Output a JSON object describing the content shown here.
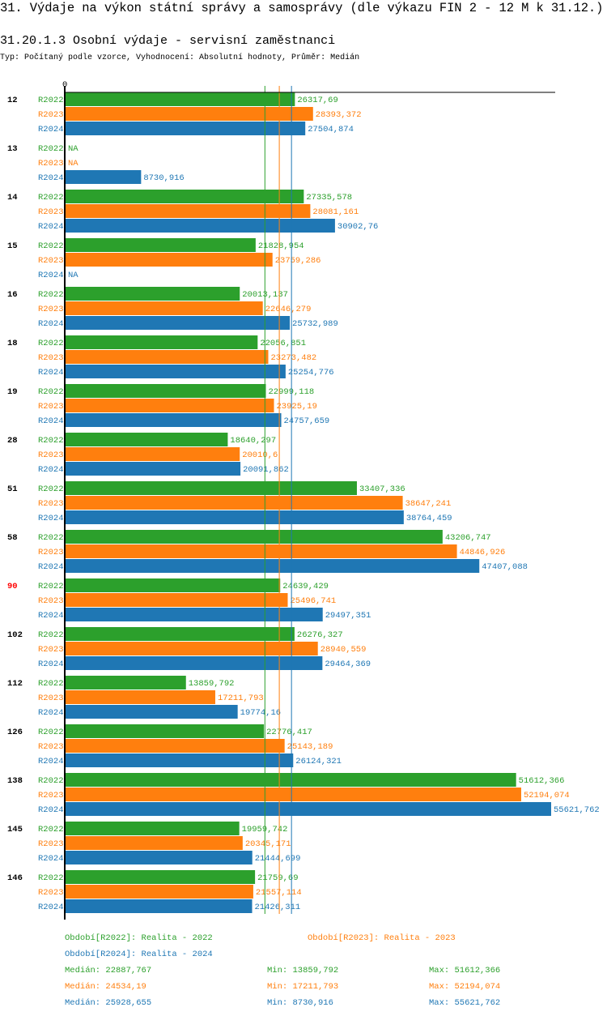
{
  "header": {
    "title": "31. Výdaje na výkon státní správy a samosprávy (dle výkazu FIN 2 - 12 M k 31.12.)",
    "subtitle": "31.20.1.3 Osobní výdaje - servisní zaměstnanci",
    "type_line": "Typ: Počítaný podle vzorce, Vyhodnocení: Absolutní hodnoty, Průměr: Medián"
  },
  "chart_data": {
    "type": "bar",
    "orientation": "horizontal",
    "axis_zero_label": "0",
    "xlim": [
      0,
      55621.762
    ],
    "grid": false,
    "categories": [
      "12",
      "13",
      "14",
      "15",
      "16",
      "18",
      "19",
      "28",
      "51",
      "58",
      "90",
      "102",
      "112",
      "126",
      "138",
      "145",
      "146"
    ],
    "highlighted_category": "90",
    "highlight_color": "#ff0000",
    "na_label": "NA",
    "series": [
      {
        "name": "R2022",
        "color": "#2ca02c",
        "values": [
          26317.69,
          null,
          27335.578,
          21828.954,
          20013.137,
          22056.851,
          22999.118,
          18640.297,
          33407.336,
          43206.747,
          24639.429,
          26276.327,
          13859.792,
          22776.417,
          51612.366,
          19959.742,
          21759.69
        ],
        "labels": [
          "26317,69",
          "NA",
          "27335,578",
          "21828,954",
          "20013,137",
          "22056,851",
          "22999,118",
          "18640,297",
          "33407,336",
          "43206,747",
          "24639,429",
          "26276,327",
          "13859,792",
          "22776,417",
          "51612,366",
          "19959,742",
          "21759,69"
        ]
      },
      {
        "name": "R2023",
        "color": "#ff7f0e",
        "values": [
          28393.372,
          null,
          28081.161,
          23759.286,
          22646.279,
          23273.482,
          23925.19,
          20010.6,
          38647.241,
          44846.926,
          25496.741,
          28940.559,
          17211.793,
          25143.189,
          52194.074,
          20345.171,
          21557.114
        ],
        "labels": [
          "28393,372",
          "NA",
          "28081,161",
          "23759,286",
          "22646,279",
          "23273,482",
          "23925,19",
          "20010,6",
          "38647,241",
          "44846,926",
          "25496,741",
          "28940,559",
          "17211,793",
          "25143,189",
          "52194,074",
          "20345,171",
          "21557,114"
        ]
      },
      {
        "name": "R2024",
        "color": "#1f77b4",
        "values": [
          27504.874,
          8730.916,
          30902.76,
          null,
          25732.989,
          25254.776,
          24757.659,
          20091.862,
          38764.459,
          47407.088,
          29497.351,
          29464.369,
          19774.16,
          26124.321,
          55621.762,
          21444.699,
          21426.311
        ],
        "labels": [
          "27504,874",
          "8730,916",
          "30902,76",
          "NA",
          "25732,989",
          "25254,776",
          "24757,659",
          "20091,862",
          "38764,459",
          "47407,088",
          "29497,351",
          "29464,369",
          "19774,16",
          "26124,321",
          "55621,762",
          "21444,699",
          "21426,311"
        ]
      }
    ],
    "medians": [
      22887.767,
      24534.19,
      25928.655
    ]
  },
  "legend": {
    "periods": [
      {
        "text": "Období[R2022]: Realita - 2022",
        "color": "#2ca02c"
      },
      {
        "text": "Období[R2023]: Realita - 2023",
        "color": "#ff7f0e"
      },
      {
        "text": "Období[R2024]: Realita - 2024",
        "color": "#1f77b4"
      }
    ],
    "stats": [
      {
        "median": "Medián: 22887,767",
        "min": "Min: 13859,792",
        "max": "Max: 51612,366",
        "color": "#2ca02c"
      },
      {
        "median": "Medián: 24534,19",
        "min": "Min: 17211,793",
        "max": "Max: 52194,074",
        "color": "#ff7f0e"
      },
      {
        "median": "Medián: 25928,655",
        "min": "Min: 8730,916",
        "max": "Max: 55621,762",
        "color": "#1f77b4"
      }
    ]
  }
}
